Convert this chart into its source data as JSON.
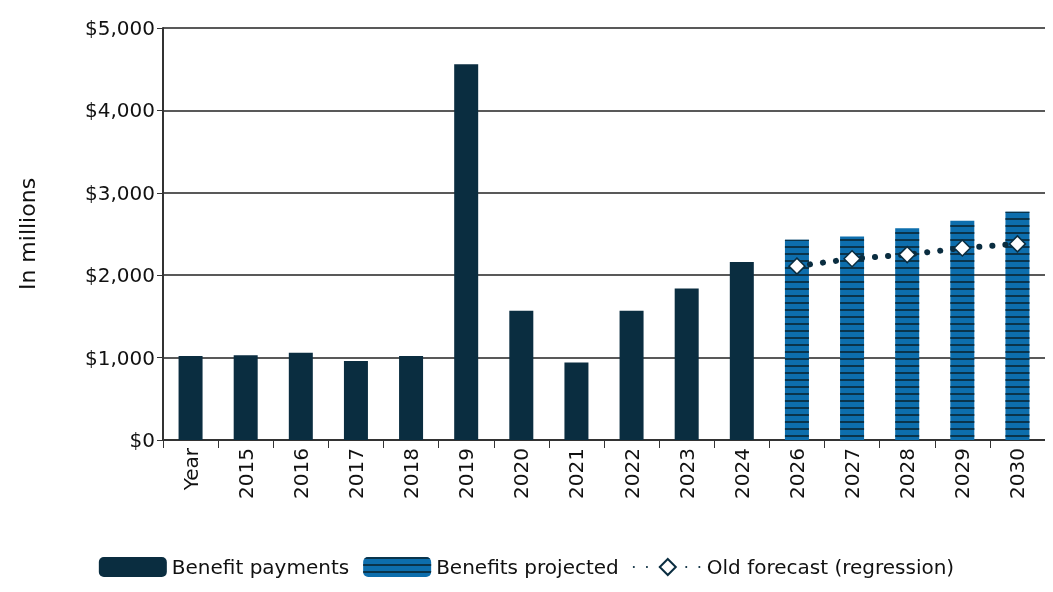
{
  "chart_data": {
    "type": "bar",
    "ylabel": "In millions",
    "categories": [
      "Year",
      "2015",
      "2016",
      "2017",
      "2018",
      "2019",
      "2020",
      "2021",
      "2022",
      "2023",
      "2024",
      "2026",
      "2027",
      "2028",
      "2029",
      "2030"
    ],
    "series": [
      {
        "name": "Benefit payments",
        "color": "#0a2d40",
        "values": [
          1020,
          1030,
          1060,
          960,
          1020,
          4560,
          1570,
          940,
          1570,
          1840,
          2160,
          null,
          null,
          null,
          null,
          null
        ]
      },
      {
        "name": "Benefits projected",
        "type": "bar",
        "color": "#0d6ead",
        "values": [
          null,
          null,
          null,
          null,
          null,
          null,
          null,
          null,
          null,
          null,
          null,
          2430,
          2470,
          2570,
          2660,
          2770
        ]
      },
      {
        "name": "Old forecast (regression)",
        "type": "line",
        "color": "#0a2d40",
        "marker": "diamond",
        "line_style": "dotted",
        "values": [
          null,
          null,
          null,
          null,
          null,
          null,
          null,
          null,
          null,
          null,
          null,
          2110,
          2200,
          2250,
          2330,
          2380
        ]
      }
    ],
    "ylim": [
      0,
      5000
    ],
    "yticks": [
      {
        "value": 0,
        "label": "$0"
      },
      {
        "value": 1000,
        "label": "$1,000"
      },
      {
        "value": 2000,
        "label": "$2,000"
      },
      {
        "value": 3000,
        "label": "$3,000"
      },
      {
        "value": 4000,
        "label": "$4,000"
      },
      {
        "value": 5000,
        "label": "$5,000"
      }
    ],
    "grid": "y",
    "legend": "bottom"
  }
}
